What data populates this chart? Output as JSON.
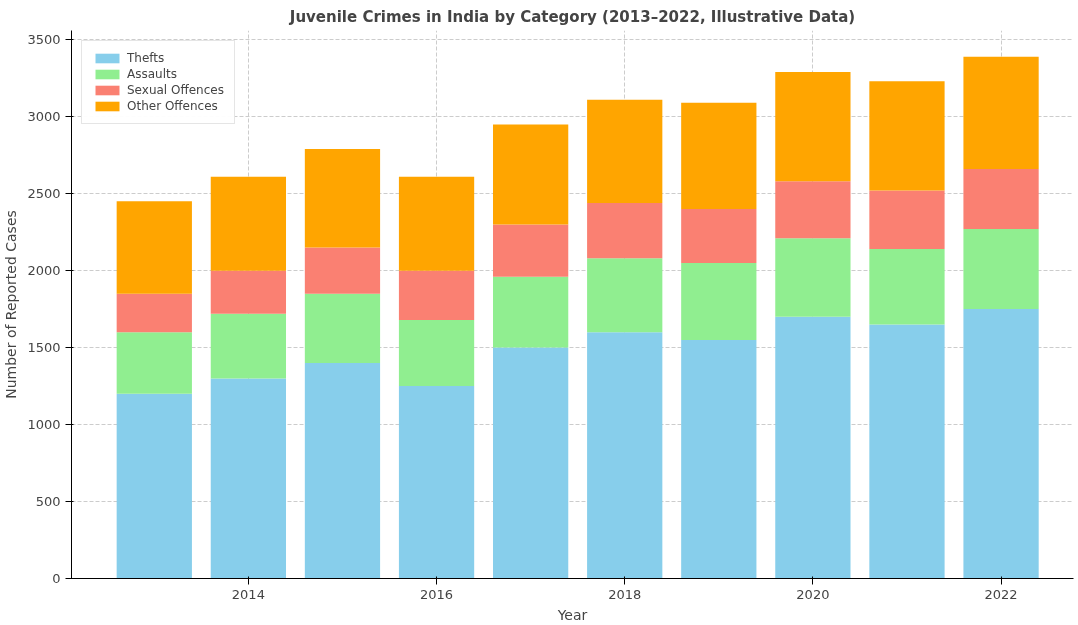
{
  "chart_data": {
    "type": "bar",
    "title": "Juvenile Crimes in India by Category (2013–2022, Illustrative Data)",
    "xlabel": "Year",
    "ylabel": "Number of Reported Cases",
    "x": [
      2013,
      2014,
      2015,
      2016,
      2017,
      2018,
      2019,
      2020,
      2021,
      2022
    ],
    "stacked": true,
    "series": [
      {
        "name": "Thefts",
        "color": "#87ceeb",
        "values": [
          1200,
          1300,
          1400,
          1250,
          1500,
          1600,
          1550,
          1700,
          1650,
          1750
        ]
      },
      {
        "name": "Assaults",
        "color": "#90ee90",
        "values": [
          400,
          420,
          450,
          430,
          460,
          480,
          500,
          510,
          490,
          520
        ]
      },
      {
        "name": "Sexual Offences",
        "color": "#fa8072",
        "values": [
          250,
          280,
          300,
          320,
          340,
          360,
          350,
          370,
          380,
          390
        ]
      },
      {
        "name": "Other Offences",
        "color": "#ffa500",
        "values": [
          600,
          610,
          640,
          610,
          650,
          670,
          690,
          710,
          710,
          730
        ]
      }
    ],
    "xlim": [
      2012.12,
      2022.77
    ],
    "xticks": [
      2014,
      2016,
      2018,
      2020,
      2022
    ],
    "ylim": [
      0,
      3560
    ],
    "yticks": [
      0,
      500,
      1000,
      1500,
      2000,
      2500,
      3000,
      3500
    ],
    "grid": true,
    "legend": "top left"
  }
}
